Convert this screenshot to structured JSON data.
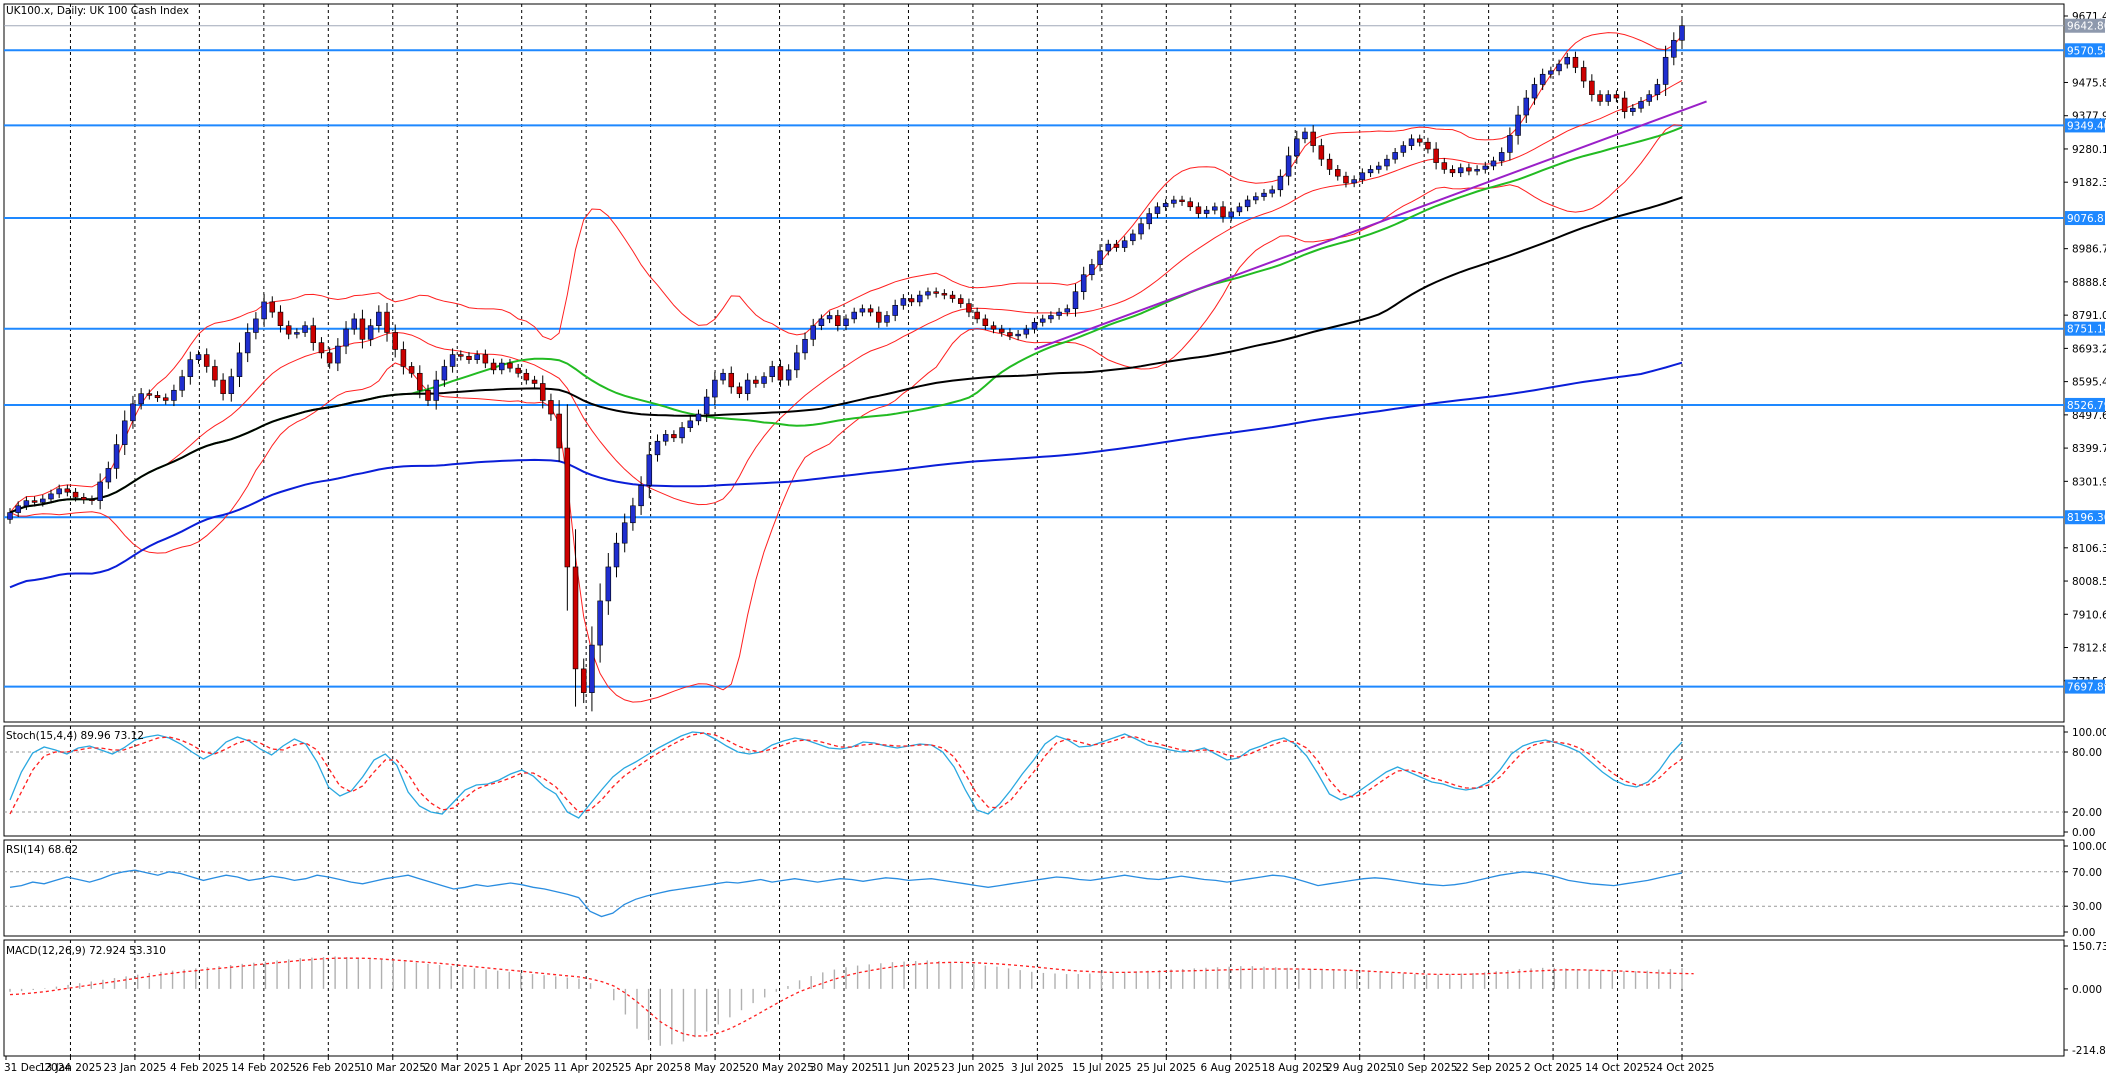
{
  "window": {
    "title": "UK100.x, Daily:  UK 100 Cash Index"
  },
  "colors": {
    "bull_candle": "#1f2ecf",
    "bear_candle": "#cc0000",
    "bollinger": "#ff2020",
    "ma_green": "#22bb22",
    "ma_black": "#000000",
    "ma_blue": "#0a1ed8",
    "trendline": "#9a20c8",
    "hline": "#1e88ff",
    "stoch_main": "#2aa8e0",
    "stoch_signal": "#ff2020",
    "rsi": "#2a8de0",
    "macd_hist": "#b0b0b0",
    "macd_signal": "#ff2020"
  },
  "chart_data": [
    {
      "type": "candlestick",
      "title": "UK100.x, Daily:  UK 100 Cash Index",
      "ylim": [
        7617.22,
        9671.44
      ],
      "price_axis_ticks": [
        "9671.44",
        "9475.80",
        "9377.98",
        "9280.16",
        "9182.34",
        "8986.70",
        "8888.88",
        "8791.06",
        "8693.24",
        "8595.42",
        "8497.60",
        "8399.78",
        "8301.96",
        "8106.32",
        "8008.50",
        "7910.68",
        "7812.86",
        "7715.04"
      ],
      "current_price_label": "9642.80",
      "current_price": 9642.8,
      "horizontal_levels": [
        "9570.54",
        "9349.40",
        "9076.81",
        "8751.14",
        "8526.79",
        "8196.30",
        "7697.89"
      ],
      "x_tick_labels": [
        "31 Dec 2024",
        "13 Jan 2025",
        "23 Jan 2025",
        "4 Feb 2025",
        "14 Feb 2025",
        "26 Feb 2025",
        "10 Mar 2025",
        "20 Mar 2025",
        "1 Apr 2025",
        "11 Apr 2025",
        "25 Apr 2025",
        "8 May 2025",
        "20 May 2025",
        "30 May 2025",
        "11 Jun 2025",
        "23 Jun 2025",
        "3 Jul 2025",
        "15 Jul 2025",
        "25 Jul 2025",
        "6 Aug 2025",
        "18 Aug 2025",
        "29 Aug 2025",
        "10 Sep 2025",
        "22 Sep 2025",
        "2 Oct 2025",
        "14 Oct 2025",
        "24 Oct 2025"
      ],
      "closes_approx": [
        8210,
        8230,
        8245,
        8240,
        8250,
        8265,
        8280,
        8270,
        8255,
        8248,
        8245,
        8300,
        8340,
        8410,
        8480,
        8530,
        8560,
        8555,
        8548,
        8540,
        8570,
        8610,
        8660,
        8675,
        8640,
        8600,
        8560,
        8610,
        8680,
        8740,
        8780,
        8830,
        8800,
        8760,
        8735,
        8740,
        8760,
        8710,
        8680,
        8650,
        8700,
        8750,
        8780,
        8720,
        8760,
        8800,
        8740,
        8690,
        8640,
        8620,
        8570,
        8540,
        8600,
        8640,
        8675,
        8670,
        8660,
        8675,
        8650,
        8630,
        8650,
        8635,
        8620,
        8600,
        8590,
        8540,
        8500,
        8400,
        8050,
        7750,
        7680,
        7820,
        7950,
        8050,
        8120,
        8180,
        8230,
        8290,
        8380,
        8420,
        8440,
        8430,
        8460,
        8480,
        8500,
        8550,
        8600,
        8620,
        8580,
        8560,
        8600,
        8590,
        8610,
        8640,
        8600,
        8630,
        8680,
        8720,
        8760,
        8780,
        8790,
        8760,
        8780,
        8800,
        8810,
        8800,
        8770,
        8790,
        8820,
        8840,
        8830,
        8850,
        8860,
        8855,
        8850,
        8840,
        8825,
        8800,
        8780,
        8760,
        8750,
        8740,
        8730,
        8735,
        8750,
        8770,
        8780,
        8790,
        8800,
        8810,
        8860,
        8910,
        8940,
        8980,
        9000,
        8990,
        9010,
        9030,
        9060,
        9090,
        9110,
        9120,
        9130,
        9125,
        9110,
        9090,
        9100,
        9110,
        9080,
        9095,
        9110,
        9130,
        9140,
        9150,
        9160,
        9200,
        9260,
        9310,
        9330,
        9290,
        9250,
        9220,
        9200,
        9180,
        9190,
        9210,
        9220,
        9230,
        9250,
        9270,
        9290,
        9310,
        9300,
        9280,
        9240,
        9220,
        9210,
        9225,
        9215,
        9220,
        9230,
        9245,
        9270,
        9320,
        9380,
        9430,
        9470,
        9500,
        9510,
        9530,
        9550,
        9520,
        9480,
        9440,
        9420,
        9440,
        9430,
        9390,
        9400,
        9420,
        9440,
        9470,
        9550,
        9600,
        9642.8
      ],
      "overlays": [
        "Bollinger Bands",
        "Moving Average (green)",
        "Moving Average (black)",
        "Moving Average (blue)",
        "Trendline"
      ]
    },
    {
      "type": "line",
      "title": "Stoch(15,4,4) 89.96 73.12",
      "ylim": [
        0,
        100
      ],
      "axis_ticks": [
        "100.00",
        "80.00",
        "20.00",
        "0.00"
      ],
      "levels": [
        80,
        20
      ],
      "series": [
        {
          "name": "Main",
          "values": [
            32,
            60,
            79,
            85,
            82,
            78,
            84,
            86,
            82,
            78,
            84,
            92,
            95,
            97,
            94,
            88,
            80,
            73,
            79,
            90,
            95,
            91,
            83,
            77,
            86,
            93,
            88,
            70,
            45,
            36,
            41,
            55,
            72,
            78,
            67,
            40,
            26,
            20,
            18,
            30,
            42,
            47,
            48,
            52,
            58,
            62,
            56,
            45,
            38,
            20,
            14,
            28,
            42,
            55,
            64,
            70,
            77,
            84,
            90,
            96,
            100,
            99,
            93,
            86,
            80,
            78,
            80,
            87,
            91,
            94,
            92,
            88,
            84,
            83,
            85,
            90,
            89,
            86,
            84,
            86,
            88,
            87,
            80,
            65,
            42,
            22,
            18,
            28,
            42,
            58,
            72,
            88,
            96,
            92,
            85,
            86,
            90,
            94,
            98,
            93,
            87,
            85,
            82,
            80,
            81,
            84,
            78,
            72,
            74,
            82,
            86,
            91,
            94,
            88,
            76,
            58,
            38,
            32,
            36,
            44,
            52,
            60,
            65,
            60,
            55,
            50,
            48,
            44,
            42,
            44,
            50,
            62,
            78,
            86,
            90,
            92,
            89,
            85,
            80,
            70,
            60,
            52,
            47,
            45,
            50,
            62,
            78,
            89.96
          ]
        },
        {
          "name": "Signal",
          "values": [
            18,
            40,
            62,
            76,
            80,
            80,
            82,
            84,
            84,
            82,
            82,
            86,
            90,
            94,
            95,
            92,
            87,
            80,
            78,
            83,
            89,
            92,
            89,
            83,
            82,
            87,
            89,
            82,
            64,
            46,
            40,
            46,
            60,
            72,
            72,
            58,
            40,
            29,
            22,
            24,
            34,
            43,
            47,
            50,
            54,
            59,
            59,
            53,
            45,
            32,
            20,
            22,
            32,
            45,
            56,
            64,
            72,
            79,
            86,
            92,
            97,
            99,
            97,
            92,
            86,
            82,
            80,
            83,
            87,
            91,
            92,
            91,
            88,
            85,
            85,
            87,
            88,
            87,
            86,
            86,
            87,
            87,
            84,
            75,
            58,
            38,
            25,
            24,
            32,
            46,
            60,
            76,
            89,
            93,
            90,
            87,
            88,
            91,
            95,
            95,
            91,
            88,
            85,
            82,
            81,
            82,
            81,
            77,
            75,
            78,
            83,
            87,
            91,
            90,
            84,
            71,
            52,
            39,
            35,
            38,
            46,
            54,
            61,
            62,
            59,
            54,
            51,
            47,
            44,
            44,
            47,
            55,
            68,
            80,
            87,
            90,
            90,
            88,
            84,
            77,
            67,
            58,
            51,
            47,
            47,
            54,
            65,
            73.12
          ]
        }
      ]
    },
    {
      "type": "line",
      "title": "RSI(14) 68.62",
      "ylim": [
        0,
        100
      ],
      "axis_ticks": [
        "100.00",
        "70.00",
        "30.00",
        "0.00"
      ],
      "levels": [
        70,
        30
      ],
      "series": [
        {
          "name": "RSI",
          "values": [
            52,
            54,
            58,
            56,
            60,
            64,
            61,
            58,
            62,
            67,
            70,
            72,
            69,
            66,
            70,
            68,
            64,
            60,
            63,
            66,
            64,
            60,
            62,
            65,
            63,
            60,
            62,
            66,
            64,
            61,
            58,
            56,
            59,
            62,
            64,
            66,
            62,
            58,
            54,
            50,
            52,
            55,
            53,
            55,
            57,
            55,
            52,
            50,
            47,
            44,
            40,
            24,
            18,
            22,
            32,
            38,
            42,
            45,
            48,
            50,
            52,
            54,
            56,
            58,
            57,
            59,
            61,
            58,
            60,
            62,
            60,
            58,
            60,
            62,
            61,
            59,
            61,
            63,
            62,
            60,
            61,
            62,
            60,
            58,
            56,
            54,
            52,
            54,
            56,
            58,
            60,
            62,
            64,
            63,
            61,
            60,
            62,
            64,
            66,
            64,
            62,
            61,
            63,
            65,
            63,
            61,
            60,
            58,
            60,
            62,
            64,
            66,
            65,
            62,
            58,
            54,
            56,
            58,
            60,
            62,
            63,
            62,
            60,
            58,
            56,
            55,
            54,
            55,
            57,
            60,
            63,
            66,
            68,
            70,
            69,
            67,
            64,
            60,
            58,
            56,
            55,
            54,
            56,
            58,
            60,
            63,
            66,
            68.62
          ]
        }
      ]
    },
    {
      "type": "bar",
      "title": "MACD(12,26,9) 72.924 53.310",
      "ylim": [
        -214.848,
        150.732
      ],
      "axis_ticks": [
        "150.732",
        "0.000",
        "-214.848"
      ],
      "series": [
        {
          "name": "MACD",
          "values": [
            -10,
            -8,
            -4,
            2,
            8,
            14,
            20,
            26,
            32,
            38,
            44,
            50,
            56,
            60,
            64,
            68,
            72,
            76,
            80,
            84,
            88,
            92,
            96,
            100,
            104,
            108,
            110,
            112,
            114,
            112,
            110,
            108,
            104,
            100,
            96,
            92,
            88,
            84,
            80,
            76,
            72,
            68,
            64,
            60,
            56,
            52,
            48,
            44,
            40,
            36,
            20,
            0,
            -40,
            -90,
            -140,
            -180,
            -200,
            -195,
            -185,
            -170,
            -150,
            -125,
            -100,
            -75,
            -50,
            -30,
            -10,
            10,
            30,
            45,
            58,
            68,
            76,
            82,
            86,
            90,
            94,
            96,
            98,
            100,
            98,
            94,
            90,
            86,
            82,
            78,
            72,
            66,
            60,
            56,
            54,
            52,
            52,
            54,
            56,
            58,
            60,
            62,
            64,
            66,
            68,
            70,
            72,
            74,
            76,
            78,
            80,
            80,
            78,
            76,
            74,
            72,
            70,
            68,
            66,
            64,
            62,
            60,
            58,
            56,
            54,
            52,
            50,
            50,
            52,
            54,
            56,
            58,
            62,
            66,
            70,
            72,
            74,
            74,
            72,
            70,
            68,
            66,
            64,
            62,
            62,
            64,
            68,
            70,
            72.924
          ]
        },
        {
          "name": "Signal",
          "values": [
            -20,
            -18,
            -14,
            -10,
            -4,
            2,
            8,
            14,
            20,
            26,
            32,
            38,
            44,
            50,
            55,
            60,
            64,
            68,
            72,
            76,
            80,
            84,
            88,
            92,
            96,
            100,
            103,
            106,
            108,
            108,
            108,
            107,
            105,
            102,
            99,
            96,
            93,
            90,
            86,
            82,
            78,
            74,
            70,
            66,
            62,
            58,
            54,
            50,
            46,
            42,
            35,
            25,
            10,
            -15,
            -45,
            -80,
            -115,
            -140,
            -158,
            -166,
            -165,
            -155,
            -140,
            -120,
            -98,
            -75,
            -52,
            -30,
            -10,
            6,
            20,
            34,
            46,
            56,
            64,
            71,
            77,
            82,
            86,
            90,
            92,
            93,
            93,
            92,
            90,
            88,
            85,
            82,
            78,
            74,
            70,
            66,
            63,
            61,
            59,
            58,
            58,
            59,
            60,
            61,
            62,
            63,
            64,
            65,
            66,
            67,
            68,
            69,
            70,
            70,
            70,
            70,
            69,
            68,
            67,
            66,
            64,
            62,
            60,
            58,
            56,
            54,
            52,
            51,
            51,
            51,
            52,
            53,
            55,
            57,
            60,
            62,
            64,
            66,
            67,
            67,
            66,
            65,
            64,
            62,
            60,
            58,
            56,
            55,
            54,
            53.31
          ]
        }
      ]
    }
  ]
}
